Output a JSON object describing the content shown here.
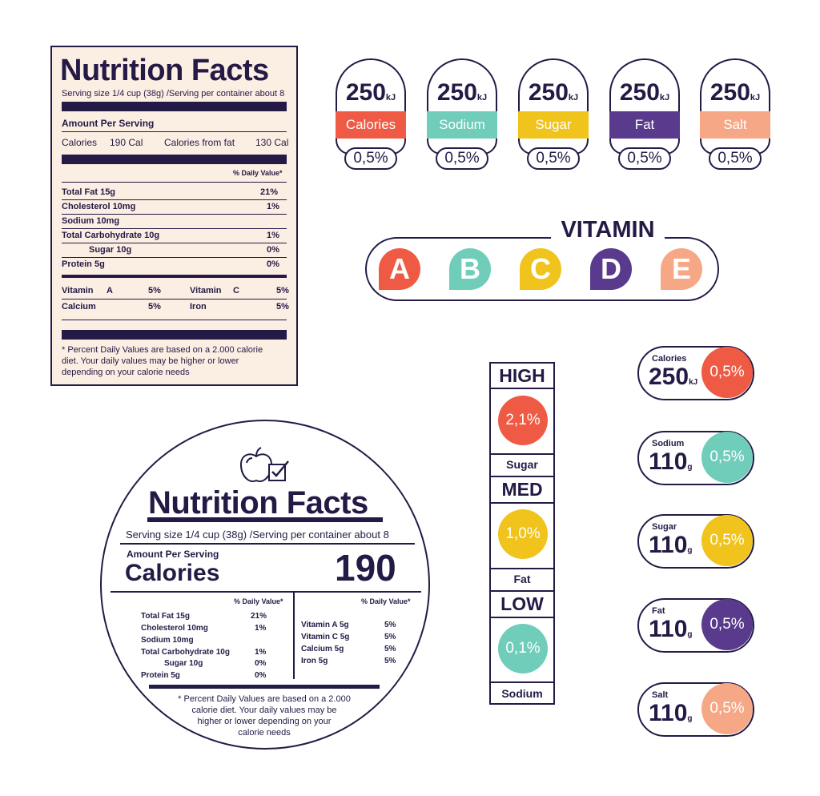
{
  "colors": {
    "ink": "#241a45",
    "label_bg": "#fbeee3",
    "red": "#ee5a43",
    "teal": "#70cdb9",
    "yellow": "#f0c31d",
    "purple": "#5a3a8c",
    "peach": "#f6a886"
  },
  "rect_label": {
    "title": "Nutrition Facts",
    "serving": "Serving size 1/4 cup (38g) /Serving per container about 8",
    "amount_per_serving": "Amount Per Serving",
    "calories_label": "Calories",
    "calories_value": "190 Cal",
    "calories_fat_label": "Calories from fat",
    "calories_fat_value": "130 Cal",
    "daily_value_header": "% Daily Value*",
    "nutrients": [
      {
        "name": "Total Fat 15g",
        "pct": "21%"
      },
      {
        "name": "Cholesterol 10mg",
        "pct": "1%"
      },
      {
        "name": "Sodium 10mg",
        "pct": ""
      },
      {
        "name": "Total Carbohydrate 10g",
        "pct": "1%"
      },
      {
        "name": "Sugar 10g",
        "pct": "0%"
      },
      {
        "name": "Protein 5g",
        "pct": "0%"
      }
    ],
    "vitamins": [
      {
        "name": "Vitamin",
        "sub": "A",
        "pct": "5%"
      },
      {
        "name": "Vitamin",
        "sub": "C",
        "pct": "5%"
      },
      {
        "name": "Calcium",
        "sub": "",
        "pct": "5%"
      },
      {
        "name": "Iron",
        "sub": "",
        "pct": "5%"
      }
    ],
    "footnote_1": "* Percent Daily Values are based on a 2.000 calorie",
    "footnote_2": "diet. Your daily values may be higher or lower",
    "footnote_3": "depending on your calorie needs"
  },
  "tags": [
    {
      "value": "250",
      "unit": "kJ",
      "label": "Calories",
      "pct": "0,5%",
      "color": "#ee5a43"
    },
    {
      "value": "250",
      "unit": "kJ",
      "label": "Sodium",
      "pct": "0,5%",
      "color": "#70cdb9"
    },
    {
      "value": "250",
      "unit": "kJ",
      "label": "Sugar",
      "pct": "0,5%",
      "color": "#f0c31d"
    },
    {
      "value": "250",
      "unit": "kJ",
      "label": "Fat",
      "pct": "0,5%",
      "color": "#5a3a8c"
    },
    {
      "value": "250",
      "unit": "kJ",
      "label": "Salt",
      "pct": "0,5%",
      "color": "#f6a886"
    }
  ],
  "vitamin": {
    "title": "VITAMIN",
    "letters": [
      {
        "letter": "A",
        "color": "#ee5a43"
      },
      {
        "letter": "B",
        "color": "#70cdb9"
      },
      {
        "letter": "C",
        "color": "#f0c31d"
      },
      {
        "letter": "D",
        "color": "#5a3a8c"
      },
      {
        "letter": "E",
        "color": "#f6a886"
      }
    ]
  },
  "round_label": {
    "icon": "apple-check-icon",
    "title": "Nutrition Facts",
    "serving": "Serving size 1/4 cup (38g) /Serving per container about 8",
    "amount_per_serving": "Amount Per Serving",
    "calories_label": "Calories",
    "calories_value": "190",
    "daily_value_header": "% Daily Value*",
    "nutrients": [
      {
        "name": "Total Fat 15g",
        "pct": "21%"
      },
      {
        "name": "Cholesterol 10mg",
        "pct": "1%"
      },
      {
        "name": "Sodium 10mg",
        "pct": ""
      },
      {
        "name": "Total Carbohydrate 10g",
        "pct": "1%"
      },
      {
        "name": "Sugar 10g",
        "pct": "0%"
      },
      {
        "name": "Protein 5g",
        "pct": "0%"
      }
    ],
    "vitamins": [
      {
        "name": "Vitamin  A 5g",
        "pct": "5%"
      },
      {
        "name": "Vitamin C 5g",
        "pct": "5%"
      },
      {
        "name": "Calcium 5g",
        "pct": "5%"
      },
      {
        "name": "Iron 5g",
        "pct": "5%"
      }
    ],
    "footnote_1": "* Percent Daily Values are based on a 2.000",
    "footnote_2": "calorie diet. Your daily values may be",
    "footnote_3": "higher or lower depending on your",
    "footnote_4": "calorie needs"
  },
  "levels": [
    {
      "level": "HIGH",
      "pct": "2,1%",
      "nutrient": "Sugar",
      "color": "#ee5a43"
    },
    {
      "level": "MED",
      "pct": "1,0%",
      "nutrient": "Fat",
      "color": "#f0c31d"
    },
    {
      "level": "LOW",
      "pct": "0,1%",
      "nutrient": "Sodium",
      "color": "#70cdb9"
    }
  ],
  "pills": [
    {
      "name": "Calories",
      "value": "250",
      "unit": "kJ",
      "pct": "0,5%",
      "color": "#ee5a43"
    },
    {
      "name": "Sodium",
      "value": "110",
      "unit": "g",
      "pct": "0,5%",
      "color": "#70cdb9"
    },
    {
      "name": "Sugar",
      "value": "110",
      "unit": "g",
      "pct": "0,5%",
      "color": "#f0c31d"
    },
    {
      "name": "Fat",
      "value": "110",
      "unit": "g",
      "pct": "0,5%",
      "color": "#5a3a8c"
    },
    {
      "name": "Salt",
      "value": "110",
      "unit": "g",
      "pct": "0,5%",
      "color": "#f6a886"
    }
  ]
}
